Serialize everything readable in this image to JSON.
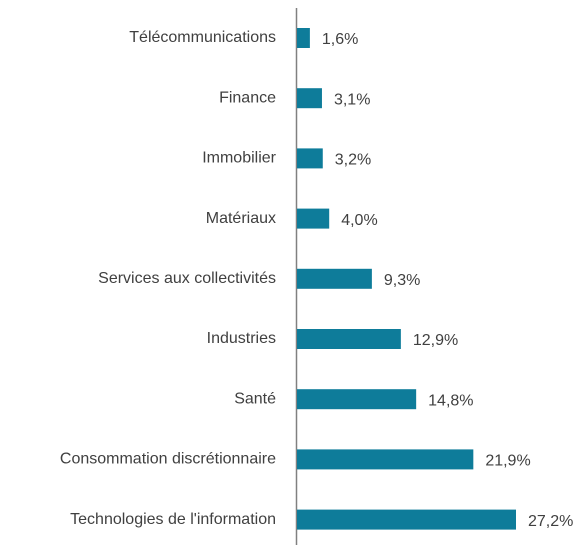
{
  "chart_data": {
    "type": "bar",
    "orientation": "horizontal",
    "categories": [
      "Télécommunications",
      "Finance",
      "Immobilier",
      "Matériaux",
      "Services aux collectivités",
      "Industries",
      "Santé",
      "Consommation discrétionnaire",
      "Technologies de l'information"
    ],
    "values": [
      1.6,
      3.1,
      3.2,
      4.0,
      9.3,
      12.9,
      14.8,
      21.9,
      27.2
    ],
    "value_labels": [
      "1,6%",
      "3,1%",
      "3,2%",
      "4,0%",
      "9,3%",
      "12,9%",
      "14,8%",
      "21,9%",
      "27,2%"
    ],
    "color": "#0e7c9a"
  }
}
